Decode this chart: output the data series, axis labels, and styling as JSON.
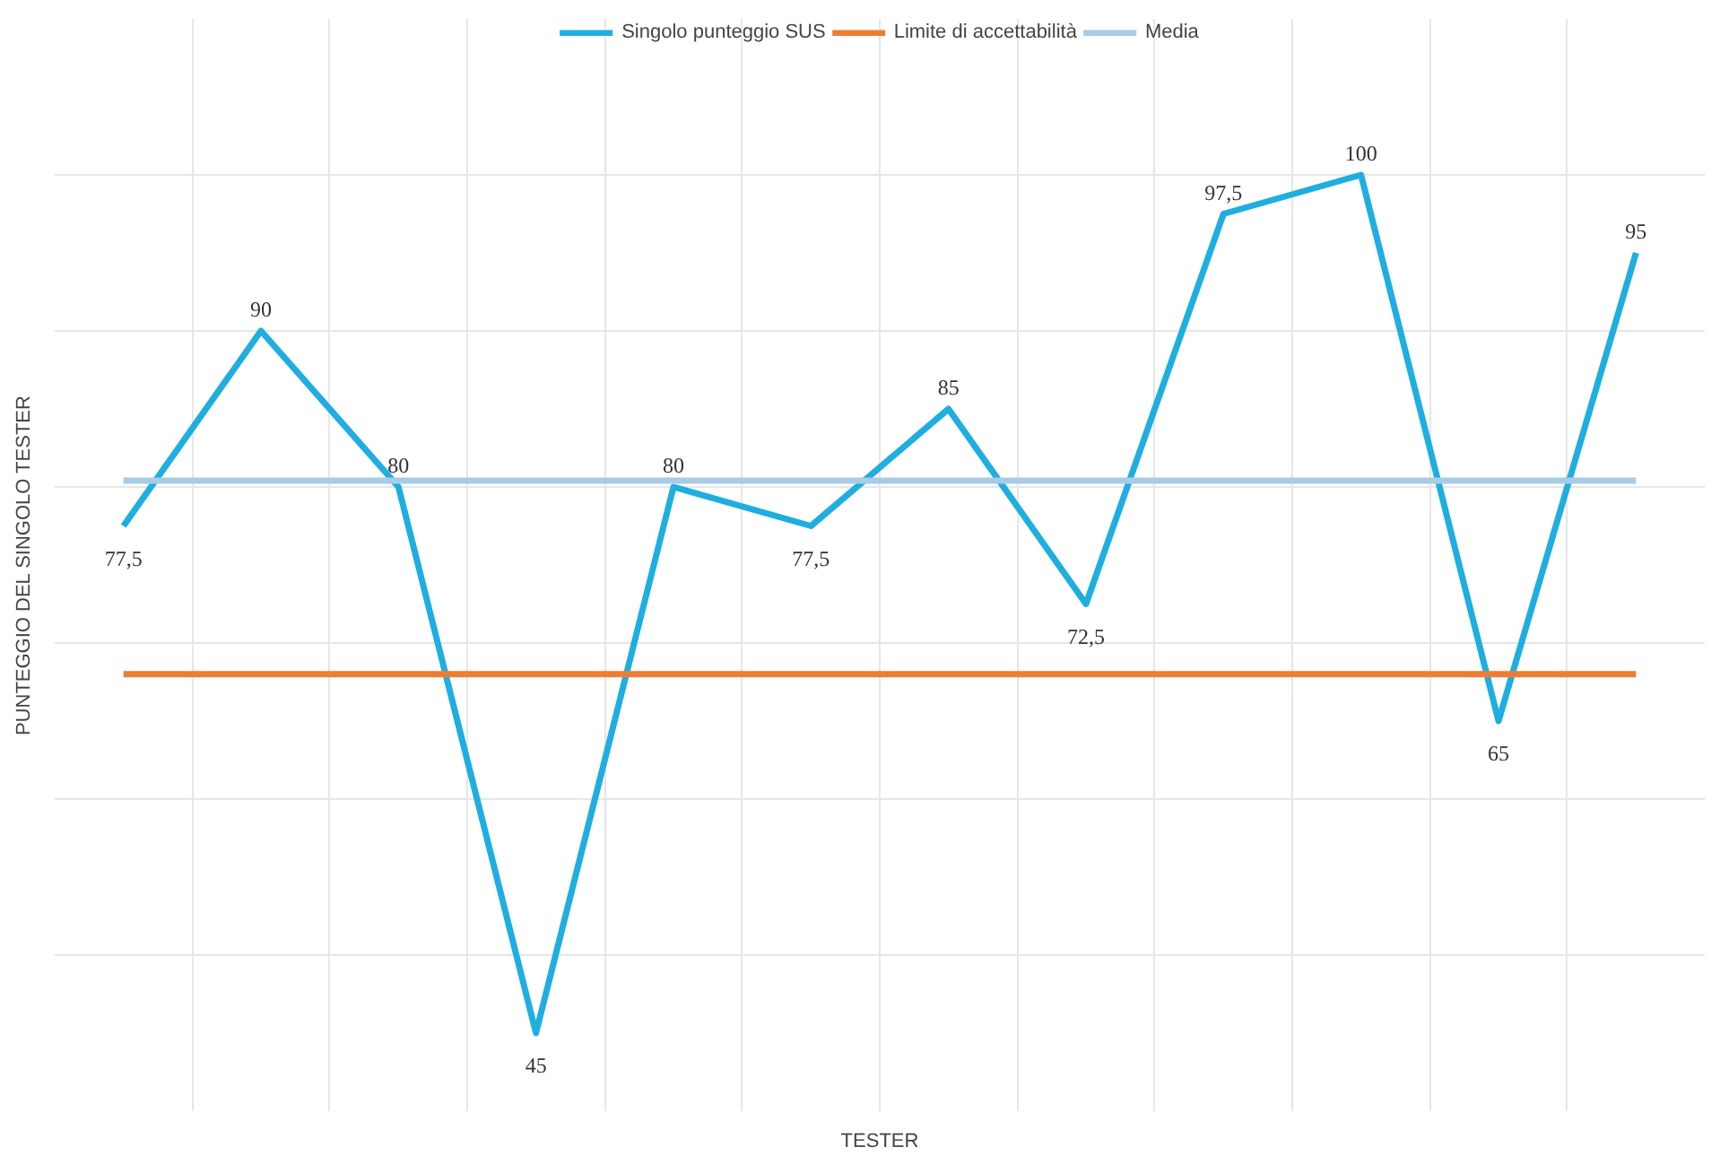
{
  "chart_data": {
    "type": "line",
    "xlabel": "TESTER",
    "ylabel": "PUNTEGGIO DEL SINGOLO TESTER",
    "categories": [
      null,
      null,
      null,
      null,
      null,
      null,
      null,
      null,
      null,
      null,
      null,
      null
    ],
    "series": [
      {
        "name": "Singolo punteggio SUS",
        "color": "#1eaee0",
        "values": [
          77.5,
          90,
          80,
          45,
          80,
          77.5,
          85,
          72.5,
          97.5,
          100,
          65,
          95
        ],
        "value_labels": [
          "77,5",
          "90",
          "80",
          "45",
          "80",
          "77,5",
          "85",
          "72,5",
          "97,5",
          "100",
          "65",
          "95"
        ]
      },
      {
        "name": "Limite di accettabilità",
        "color": "#ee7d31",
        "values": [
          68,
          68,
          68,
          68,
          68,
          68,
          68,
          68,
          68,
          68,
          68,
          68
        ]
      },
      {
        "name": "Media",
        "color": "#a8cbe8",
        "values": [
          80.4,
          80.4,
          80.4,
          80.4,
          80.4,
          80.4,
          80.4,
          80.4,
          80.4,
          80.4,
          80.4,
          80.4
        ]
      }
    ],
    "ylim": [
      40,
      110
    ],
    "yticks": [
      {
        "value": 50,
        "label": null
      },
      {
        "value": 60,
        "label": null
      },
      {
        "value": 70,
        "label": null
      },
      {
        "value": 80,
        "label": null
      },
      {
        "value": 90,
        "label": null
      },
      {
        "value": 100,
        "label": null
      }
    ],
    "tick_labels": false,
    "grid": true,
    "legend": "top",
    "marker": "none",
    "line_style": "solid"
  }
}
